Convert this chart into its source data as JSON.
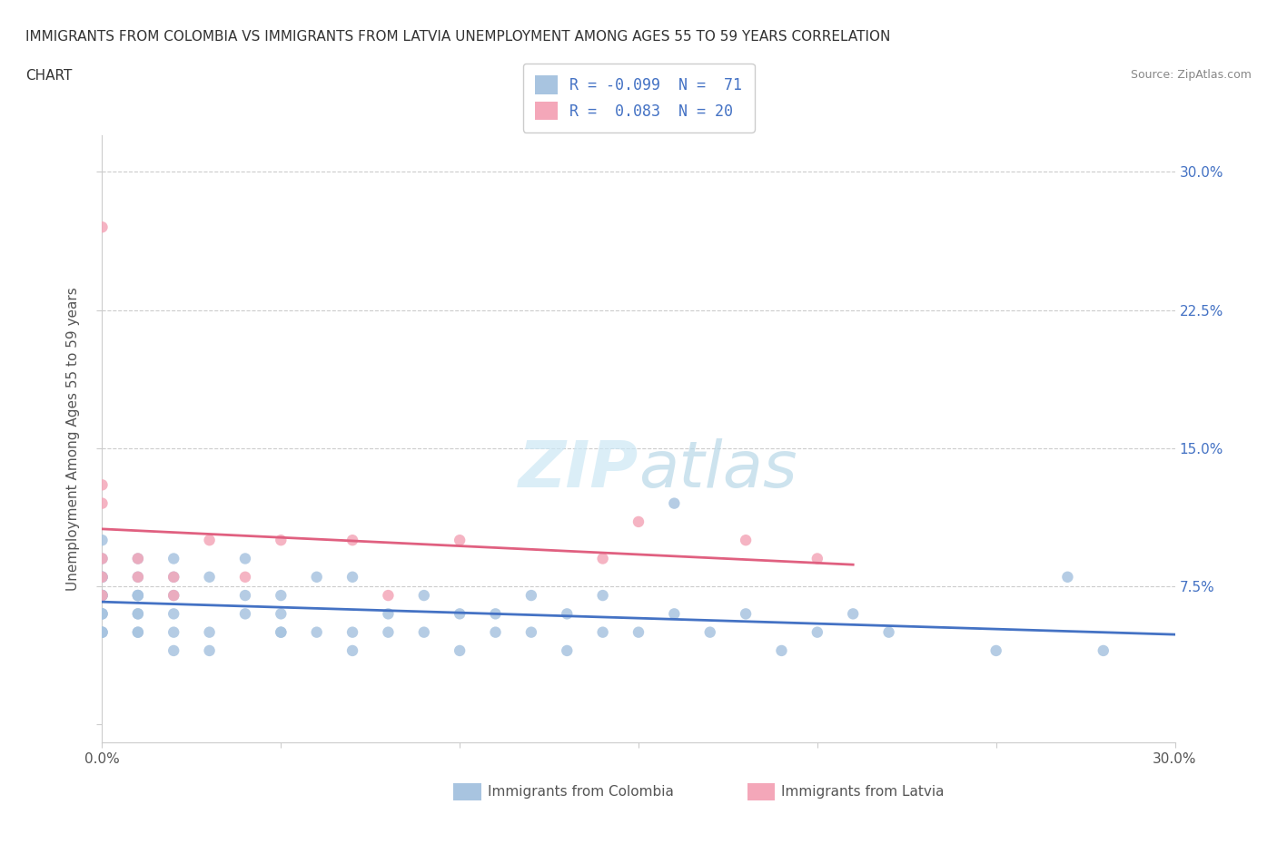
{
  "title_line1": "IMMIGRANTS FROM COLOMBIA VS IMMIGRANTS FROM LATVIA UNEMPLOYMENT AMONG AGES 55 TO 59 YEARS CORRELATION",
  "title_line2": "CHART",
  "source": "Source: ZipAtlas.com",
  "ylabel": "Unemployment Among Ages 55 to 59 years",
  "xlim": [
    0.0,
    0.3
  ],
  "ylim": [
    -0.01,
    0.32
  ],
  "watermark_zip": "ZIP",
  "watermark_atlas": "atlas",
  "colombia_color": "#a8c4e0",
  "latvia_color": "#f4a7b9",
  "colombia_line_color": "#4472c4",
  "latvia_line_color": "#e06080",
  "R_colombia": -0.099,
  "N_colombia": 71,
  "R_latvia": 0.083,
  "N_latvia": 20,
  "colombia_x": [
    0.0,
    0.0,
    0.0,
    0.0,
    0.0,
    0.0,
    0.0,
    0.0,
    0.0,
    0.0,
    0.0,
    0.0,
    0.0,
    0.0,
    0.0,
    0.01,
    0.01,
    0.01,
    0.01,
    0.01,
    0.01,
    0.01,
    0.01,
    0.01,
    0.02,
    0.02,
    0.02,
    0.02,
    0.02,
    0.02,
    0.03,
    0.03,
    0.03,
    0.04,
    0.04,
    0.04,
    0.05,
    0.05,
    0.05,
    0.05,
    0.06,
    0.06,
    0.07,
    0.07,
    0.07,
    0.08,
    0.08,
    0.09,
    0.09,
    0.1,
    0.1,
    0.11,
    0.11,
    0.12,
    0.12,
    0.13,
    0.13,
    0.14,
    0.14,
    0.15,
    0.16,
    0.16,
    0.17,
    0.18,
    0.19,
    0.2,
    0.21,
    0.22,
    0.25,
    0.27,
    0.28
  ],
  "colombia_y": [
    0.05,
    0.05,
    0.05,
    0.06,
    0.06,
    0.06,
    0.07,
    0.07,
    0.07,
    0.07,
    0.08,
    0.08,
    0.08,
    0.09,
    0.1,
    0.05,
    0.05,
    0.06,
    0.06,
    0.07,
    0.07,
    0.07,
    0.08,
    0.09,
    0.04,
    0.05,
    0.06,
    0.07,
    0.08,
    0.09,
    0.04,
    0.05,
    0.08,
    0.06,
    0.07,
    0.09,
    0.05,
    0.05,
    0.06,
    0.07,
    0.05,
    0.08,
    0.04,
    0.05,
    0.08,
    0.05,
    0.06,
    0.05,
    0.07,
    0.04,
    0.06,
    0.05,
    0.06,
    0.05,
    0.07,
    0.04,
    0.06,
    0.05,
    0.07,
    0.05,
    0.06,
    0.12,
    0.05,
    0.06,
    0.04,
    0.05,
    0.06,
    0.05,
    0.04,
    0.08,
    0.04
  ],
  "latvia_x": [
    0.0,
    0.0,
    0.0,
    0.0,
    0.0,
    0.0,
    0.01,
    0.01,
    0.02,
    0.02,
    0.03,
    0.04,
    0.05,
    0.07,
    0.08,
    0.1,
    0.14,
    0.15,
    0.18,
    0.2
  ],
  "latvia_y": [
    0.07,
    0.08,
    0.09,
    0.12,
    0.13,
    0.27,
    0.08,
    0.09,
    0.07,
    0.08,
    0.1,
    0.08,
    0.1,
    0.1,
    0.07,
    0.1,
    0.09,
    0.11,
    0.1,
    0.09
  ]
}
